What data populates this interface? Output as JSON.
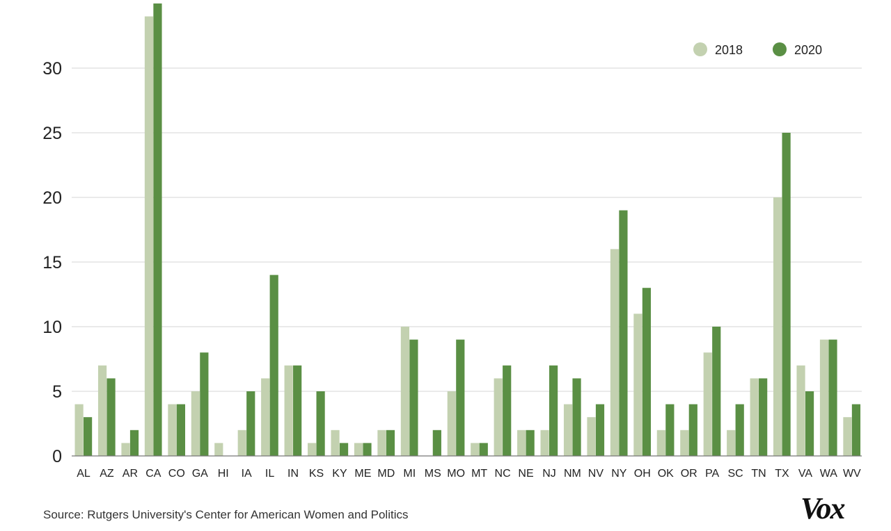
{
  "chart_data": {
    "type": "bar",
    "title": "",
    "xlabel": "",
    "ylabel": "",
    "ylim": [
      0,
      35
    ],
    "yticks": [
      0,
      5,
      10,
      15,
      20,
      25,
      30
    ],
    "grid": true,
    "legend_position": "top-right",
    "categories": [
      "AL",
      "AZ",
      "AR",
      "CA",
      "CO",
      "GA",
      "HI",
      "IA",
      "IL",
      "IN",
      "KS",
      "KY",
      "ME",
      "MD",
      "MI",
      "MS",
      "MO",
      "MT",
      "NC",
      "NE",
      "NJ",
      "NM",
      "NV",
      "NY",
      "OH",
      "OK",
      "OR",
      "PA",
      "SC",
      "TN",
      "TX",
      "VA",
      "WA",
      "WV"
    ],
    "series": [
      {
        "name": "2018",
        "color": "#c3d1b0",
        "values": [
          4,
          7,
          1,
          34,
          4,
          5,
          1,
          2,
          6,
          7,
          1,
          2,
          1,
          2,
          10,
          0,
          5,
          1,
          6,
          2,
          2,
          4,
          3,
          16,
          11,
          2,
          2,
          8,
          2,
          6,
          20,
          7,
          9,
          3
        ]
      },
      {
        "name": "2020",
        "color": "#5a8f44",
        "values": [
          3,
          6,
          2,
          35,
          4,
          8,
          0,
          5,
          14,
          7,
          5,
          1,
          1,
          2,
          9,
          2,
          9,
          1,
          7,
          2,
          7,
          6,
          4,
          19,
          13,
          4,
          4,
          10,
          4,
          6,
          25,
          5,
          9,
          4
        ]
      }
    ]
  },
  "source": "Source: Rutgers University's Center for American Women and Politics",
  "logo_text": "Vox"
}
